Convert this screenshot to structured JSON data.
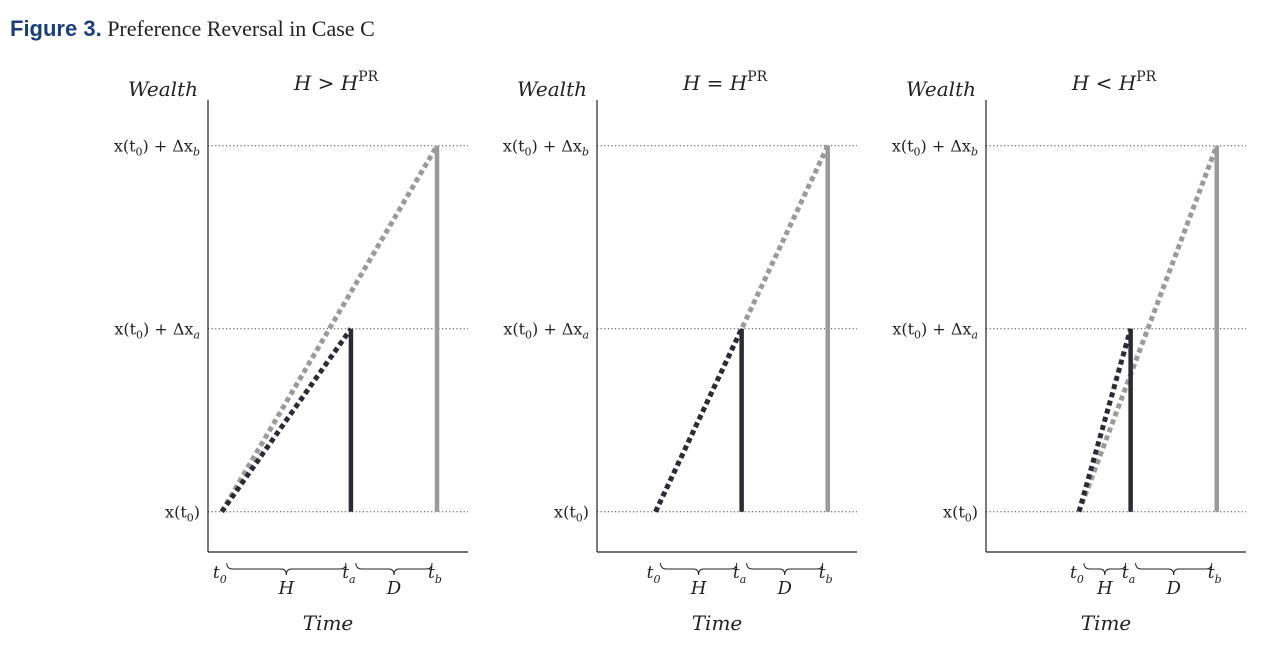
{
  "figure": {
    "number": "Figure 3.",
    "caption": "Preference Reversal in Case C"
  },
  "colors": {
    "figure_number": "#1c3f7c",
    "option_a": "#2b2b33",
    "option_b": "#9a9a9a",
    "axis": "#222222"
  },
  "chart_data": [
    {
      "type": "line",
      "panel": "left",
      "title": "H > H",
      "title_sup": "PR",
      "ylabel": "Wealth",
      "xlabel": "Time",
      "y_ticks": [
        {
          "value": 0,
          "base": "x(t",
          "sub": "0",
          "rest": ")"
        },
        {
          "value": 1,
          "base": "x(t",
          "sub": "0",
          "rest": ") + Δx",
          "sub2": "a"
        },
        {
          "value": 2,
          "base": "x(t",
          "sub": "0",
          "rest": ") + Δx",
          "sub2": "b"
        }
      ],
      "ylim": [
        -0.22,
        2.25
      ],
      "xlim": [
        -0.16,
        2.86
      ],
      "grid": "dotted at y ticks",
      "x_ticks": [
        {
          "value": 0,
          "label": "t",
          "sub": "0"
        },
        {
          "value": 1.5,
          "label": "t",
          "sub": "a"
        },
        {
          "value": 2.5,
          "label": "t",
          "sub": "b"
        }
      ],
      "braces": [
        {
          "from": 0,
          "to": 1.5,
          "label": "H"
        },
        {
          "from": 1.5,
          "to": 2.5,
          "label": "D"
        }
      ],
      "series": [
        {
          "color": "#9a9a9a",
          "style": "dashed",
          "x": [
            0,
            2.5
          ],
          "y": [
            0,
            2
          ]
        },
        {
          "color": "#2b2b33",
          "style": "dashed",
          "x": [
            0,
            1.5
          ],
          "y": [
            0,
            1
          ]
        },
        {
          "color": "#2b2b33",
          "style": "solid",
          "x": [
            1.5,
            1.5
          ],
          "y": [
            0,
            1
          ]
        },
        {
          "color": "#9a9a9a",
          "style": "solid",
          "x": [
            2.5,
            2.5
          ],
          "y": [
            0,
            2
          ]
        }
      ]
    },
    {
      "type": "line",
      "panel": "middle",
      "title": "H = H",
      "title_sup": "PR",
      "ylabel": "Wealth",
      "xlabel": "Time",
      "y_ticks": [
        {
          "value": 0,
          "base": "x(t",
          "sub": "0",
          "rest": ")"
        },
        {
          "value": 1,
          "base": "x(t",
          "sub": "0",
          "rest": ") + Δx",
          "sub2": "a"
        },
        {
          "value": 2,
          "base": "x(t",
          "sub": "0",
          "rest": ") + Δx",
          "sub2": "b"
        }
      ],
      "ylim": [
        -0.22,
        2.25
      ],
      "xlim": [
        -0.68,
        2.34
      ],
      "grid": "dotted at y ticks",
      "x_ticks": [
        {
          "value": 0,
          "label": "t",
          "sub": "0"
        },
        {
          "value": 1,
          "label": "t",
          "sub": "a"
        },
        {
          "value": 2,
          "label": "t",
          "sub": "b"
        }
      ],
      "braces": [
        {
          "from": 0,
          "to": 1,
          "label": "H"
        },
        {
          "from": 1,
          "to": 2,
          "label": "D"
        }
      ],
      "series": [
        {
          "color": "#9a9a9a",
          "style": "dashed",
          "x": [
            0,
            2
          ],
          "y": [
            0,
            2
          ]
        },
        {
          "color": "#2b2b33",
          "style": "dashed",
          "x": [
            0,
            1
          ],
          "y": [
            0,
            1
          ]
        },
        {
          "color": "#2b2b33",
          "style": "solid",
          "x": [
            1,
            1
          ],
          "y": [
            0,
            1
          ]
        },
        {
          "color": "#9a9a9a",
          "style": "solid",
          "x": [
            2,
            2
          ],
          "y": [
            0,
            2
          ]
        }
      ]
    },
    {
      "type": "line",
      "panel": "right",
      "title": "H < H",
      "title_sup": "PR",
      "ylabel": "Wealth",
      "xlabel": "Time",
      "y_ticks": [
        {
          "value": 0,
          "base": "x(t",
          "sub": "0",
          "rest": ")"
        },
        {
          "value": 1,
          "base": "x(t",
          "sub": "0",
          "rest": ") + Δx",
          "sub2": "a"
        },
        {
          "value": 2,
          "base": "x(t",
          "sub": "0",
          "rest": ") + Δx",
          "sub2": "b"
        }
      ],
      "ylim": [
        -0.22,
        2.25
      ],
      "xlim": [
        -1.08,
        1.94
      ],
      "grid": "dotted at y ticks",
      "x_ticks": [
        {
          "value": 0,
          "label": "t",
          "sub": "0"
        },
        {
          "value": 0.6,
          "label": "t",
          "sub": "a"
        },
        {
          "value": 1.6,
          "label": "t",
          "sub": "b"
        }
      ],
      "braces": [
        {
          "from": 0,
          "to": 0.6,
          "label": "H"
        },
        {
          "from": 0.6,
          "to": 1.6,
          "label": "D"
        }
      ],
      "series": [
        {
          "color": "#9a9a9a",
          "style": "dashed",
          "x": [
            0,
            1.6
          ],
          "y": [
            0,
            2
          ]
        },
        {
          "color": "#2b2b33",
          "style": "dashed",
          "x": [
            0,
            0.6
          ],
          "y": [
            0,
            1
          ]
        },
        {
          "color": "#2b2b33",
          "style": "solid",
          "x": [
            0.6,
            0.6
          ],
          "y": [
            0,
            1
          ]
        },
        {
          "color": "#9a9a9a",
          "style": "solid",
          "x": [
            1.6,
            1.6
          ],
          "y": [
            0,
            2
          ]
        }
      ]
    }
  ]
}
